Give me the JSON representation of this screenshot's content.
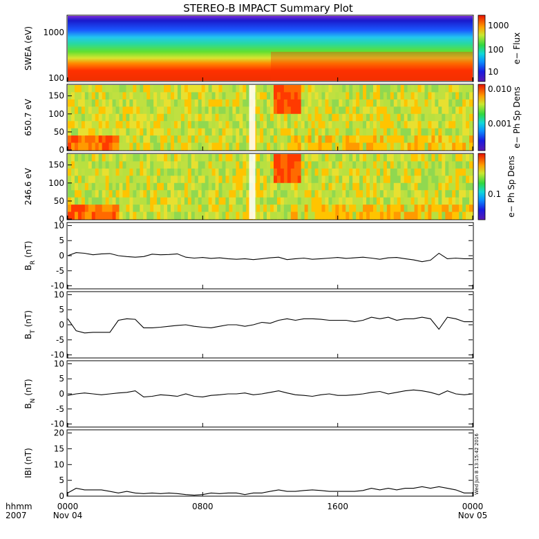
{
  "chart_data": {
    "title": "STEREO-B IMPACT Summary Plot",
    "time_axis": {
      "row_labels": [
        "hhmm",
        "2007"
      ],
      "ticks": [
        {
          "time": "0000",
          "date": "Nov 04",
          "hour": 0
        },
        {
          "time": "0800",
          "date": "",
          "hour": 8
        },
        {
          "time": "1600",
          "date": "",
          "hour": 16
        },
        {
          "time": "0000",
          "date": "Nov 05",
          "hour": 24
        }
      ],
      "range_hours": [
        0,
        24
      ]
    },
    "stamp": "Wed Jun  8 13:15:42 2016",
    "panels": [
      {
        "type": "heatmap",
        "ylabel": "SWEA (eV)",
        "yscale": "log",
        "ylim": [
          90,
          2000
        ],
        "yticks": [
          "1000",
          "100"
        ],
        "colorbar": {
          "label": "e− Flux",
          "scale": "log",
          "ticks": [
            "1000",
            "100",
            "10"
          ],
          "range": [
            3,
            3000
          ]
        },
        "notes": "energy spectrum: high flux (red) below ~250 eV, green ~500 eV, blue above ~1000 eV; brief enhancement near 12:00"
      },
      {
        "type": "heatmap",
        "ylabel": "650.7 eV",
        "ylim": [
          0,
          180
        ],
        "yticks": [
          "150",
          "100",
          "50",
          "0"
        ],
        "colorbar": {
          "label": "e− Ph Sp Dens",
          "scale": "log",
          "ticks": [
            "0.010",
            "0.001"
          ],
          "range": [
            0.0001,
            0.012
          ]
        },
        "notes": "pitch angle distribution; data gap near 10:45; enhanced strahl after 12:00"
      },
      {
        "type": "heatmap",
        "ylabel": "246.6 eV",
        "ylim": [
          0,
          180
        ],
        "yticks": [
          "150",
          "100",
          "50",
          "0"
        ],
        "colorbar": {
          "label": "e− Ph Sp Dens",
          "scale": "log",
          "ticks": [
            "0.1"
          ],
          "range": [
            0.02,
            0.5
          ]
        },
        "notes": "pitch angle distribution; data gap near 10:45; enhanced 12:00-13:30"
      },
      {
        "type": "line",
        "ylabel": "B",
        "ylabel_sub": "R",
        "ylabel_unit": "(nT)",
        "ylim": [
          -11,
          11
        ],
        "yticks": [
          "10",
          "5",
          "0",
          "-5",
          "-10"
        ],
        "x": [
          0,
          0.5,
          1,
          1.5,
          2,
          2.5,
          3,
          3.5,
          4,
          4.5,
          5,
          5.5,
          6,
          6.5,
          7,
          7.5,
          8,
          8.5,
          9,
          9.5,
          10,
          10.5,
          11,
          11.5,
          12,
          12.5,
          13,
          13.5,
          14,
          14.5,
          15,
          15.5,
          16,
          16.5,
          17,
          17.5,
          18,
          18.5,
          19,
          19.5,
          20,
          20.5,
          21,
          21.5,
          22,
          22.5,
          23,
          23.5,
          24
        ],
        "values": [
          0.0,
          1.0,
          0.8,
          0.3,
          0.6,
          0.7,
          0.0,
          -0.3,
          -0.5,
          -0.3,
          0.5,
          0.3,
          0.4,
          0.6,
          -0.5,
          -0.8,
          -0.6,
          -0.9,
          -0.7,
          -1.0,
          -1.2,
          -1.0,
          -1.3,
          -1.0,
          -0.7,
          -0.5,
          -1.3,
          -1.0,
          -0.8,
          -1.2,
          -1.0,
          -0.8,
          -0.6,
          -0.9,
          -0.7,
          -0.5,
          -0.8,
          -1.2,
          -0.7,
          -0.6,
          -1.0,
          -1.4,
          -2.0,
          -1.5,
          0.8,
          -1.0,
          -0.8,
          -1.0,
          -1.0
        ]
      },
      {
        "type": "line",
        "ylabel": "B",
        "ylabel_sub": "T",
        "ylabel_unit": "(nT)",
        "ylim": [
          -11,
          11
        ],
        "yticks": [
          "10",
          "5",
          "0",
          "-5",
          "-10"
        ],
        "x": [
          0,
          0.5,
          1,
          1.5,
          2,
          2.5,
          3,
          3.5,
          4,
          4.5,
          5,
          5.5,
          6,
          6.5,
          7,
          7.5,
          8,
          8.5,
          9,
          9.5,
          10,
          10.5,
          11,
          11.5,
          12,
          12.5,
          13,
          13.5,
          14,
          14.5,
          15,
          15.5,
          16,
          16.5,
          17,
          17.5,
          18,
          18.5,
          19,
          19.5,
          20,
          20.5,
          21,
          21.5,
          22,
          22.5,
          23,
          23.5,
          24
        ],
        "values": [
          2.0,
          -2.0,
          -2.7,
          -2.5,
          -2.5,
          -2.5,
          1.5,
          2.0,
          1.8,
          -1.0,
          -1.0,
          -0.8,
          -0.5,
          -0.2,
          0.0,
          -0.5,
          -0.8,
          -1.0,
          -0.5,
          0.0,
          0.0,
          -0.5,
          0.0,
          0.8,
          0.5,
          1.5,
          2.0,
          1.5,
          2.0,
          2.0,
          1.8,
          1.5,
          1.5,
          1.5,
          1.0,
          1.5,
          2.5,
          2.0,
          2.5,
          1.5,
          2.0,
          2.0,
          2.5,
          2.0,
          -1.5,
          2.5,
          2.0,
          1.0,
          1.0
        ]
      },
      {
        "type": "line",
        "ylabel": "B",
        "ylabel_sub": "N",
        "ylabel_unit": "(nT)",
        "ylim": [
          -11,
          11
        ],
        "yticks": [
          "10",
          "5",
          "0",
          "-5",
          "-10"
        ],
        "x": [
          0,
          0.5,
          1,
          1.5,
          2,
          2.5,
          3,
          3.5,
          4,
          4.5,
          5,
          5.5,
          6,
          6.5,
          7,
          7.5,
          8,
          8.5,
          9,
          9.5,
          10,
          10.5,
          11,
          11.5,
          12,
          12.5,
          13,
          13.5,
          14,
          14.5,
          15,
          15.5,
          16,
          16.5,
          17,
          17.5,
          18,
          18.5,
          19,
          19.5,
          20,
          20.5,
          21,
          21.5,
          22,
          22.5,
          23,
          23.5,
          24
        ],
        "values": [
          -0.5,
          0.0,
          0.3,
          0.0,
          -0.3,
          0.0,
          0.3,
          0.5,
          1.0,
          -1.0,
          -0.8,
          -0.3,
          -0.5,
          -0.8,
          0.0,
          -0.8,
          -1.0,
          -0.5,
          -0.3,
          0.0,
          0.0,
          0.3,
          -0.3,
          0.0,
          0.5,
          1.0,
          0.3,
          -0.3,
          -0.5,
          -0.8,
          -0.3,
          0.0,
          -0.5,
          -0.5,
          -0.3,
          0.0,
          0.5,
          0.8,
          0.0,
          0.5,
          1.0,
          1.3,
          1.0,
          0.5,
          -0.3,
          1.0,
          0.0,
          -0.3,
          0.0
        ]
      },
      {
        "type": "line",
        "ylabel": "IBI",
        "ylabel_sub": "",
        "ylabel_unit": "(nT)",
        "ylim": [
          0,
          21
        ],
        "yticks": [
          "20",
          "15",
          "10",
          "5",
          "0"
        ],
        "x": [
          0,
          0.5,
          1,
          1.5,
          2,
          2.5,
          3,
          3.5,
          4,
          4.5,
          5,
          5.5,
          6,
          6.5,
          7,
          7.5,
          8,
          8.5,
          9,
          9.5,
          10,
          10.5,
          11,
          11.5,
          12,
          12.5,
          13,
          13.5,
          14,
          14.5,
          15,
          15.5,
          16,
          16.5,
          17,
          17.5,
          18,
          18.5,
          19,
          19.5,
          20,
          20.5,
          21,
          21.5,
          22,
          22.5,
          23,
          23.5,
          24
        ],
        "values": [
          1.0,
          2.5,
          2.0,
          2.0,
          2.0,
          1.5,
          1.0,
          1.5,
          1.0,
          0.8,
          1.0,
          0.8,
          1.0,
          0.8,
          0.5,
          0.3,
          0.5,
          1.0,
          0.8,
          1.0,
          1.0,
          0.5,
          1.0,
          1.0,
          1.5,
          2.0,
          1.5,
          1.5,
          1.8,
          2.0,
          1.8,
          1.5,
          1.5,
          1.5,
          1.5,
          1.8,
          2.5,
          2.0,
          2.5,
          2.0,
          2.5,
          2.5,
          3.0,
          2.5,
          3.0,
          2.5,
          2.0,
          1.0,
          1.0
        ]
      }
    ]
  }
}
